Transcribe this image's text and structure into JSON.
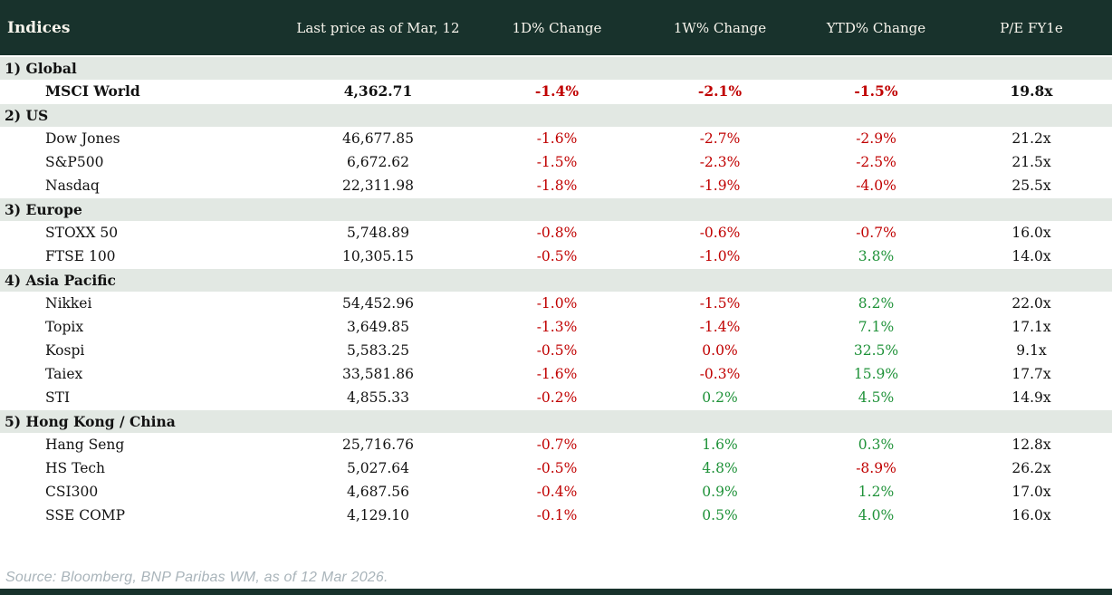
{
  "colors": {
    "header_bg": "#18322c",
    "header_text": "#f7f4ec",
    "section_bg": "#e2e8e3",
    "body_text": "#121212",
    "negative": "#c00000",
    "positive": "#1f9239",
    "source_text": "#a9b4ba",
    "bottom_bar": "#18322c"
  },
  "footer": {
    "source": "Source: Bloomberg, BNP Paribas WM, as of 12 Mar 2026."
  },
  "chart_data": {
    "type": "table",
    "title": "Indices",
    "columns": [
      "Indices",
      "Last price as of Mar, 12",
      "1D% Change",
      "1W% Change",
      "YTD% Change",
      "P/E FY1e"
    ],
    "sections": [
      {
        "label": "1) Global",
        "rows": [
          {
            "name": "MSCI World",
            "price": "4,362.71",
            "d1": {
              "text": "-1.4%",
              "dir": "neg"
            },
            "w1": {
              "text": "-2.1%",
              "dir": "neg"
            },
            "ytd": {
              "text": "-1.5%",
              "dir": "neg"
            },
            "pe": "19.8x",
            "bold": true
          }
        ]
      },
      {
        "label": "2) US",
        "rows": [
          {
            "name": "Dow Jones",
            "price": "46,677.85",
            "d1": {
              "text": "-1.6%",
              "dir": "neg"
            },
            "w1": {
              "text": "-2.7%",
              "dir": "neg"
            },
            "ytd": {
              "text": "-2.9%",
              "dir": "neg"
            },
            "pe": "21.2x",
            "bold": false
          },
          {
            "name": "S&P500",
            "price": "6,672.62",
            "d1": {
              "text": "-1.5%",
              "dir": "neg"
            },
            "w1": {
              "text": "-2.3%",
              "dir": "neg"
            },
            "ytd": {
              "text": "-2.5%",
              "dir": "neg"
            },
            "pe": "21.5x",
            "bold": false
          },
          {
            "name": "Nasdaq",
            "price": "22,311.98",
            "d1": {
              "text": "-1.8%",
              "dir": "neg"
            },
            "w1": {
              "text": "-1.9%",
              "dir": "neg"
            },
            "ytd": {
              "text": "-4.0%",
              "dir": "neg"
            },
            "pe": "25.5x",
            "bold": false
          }
        ]
      },
      {
        "label": "3) Europe",
        "rows": [
          {
            "name": "STOXX 50",
            "price": "5,748.89",
            "d1": {
              "text": "-0.8%",
              "dir": "neg"
            },
            "w1": {
              "text": "-0.6%",
              "dir": "neg"
            },
            "ytd": {
              "text": "-0.7%",
              "dir": "neg"
            },
            "pe": "16.0x",
            "bold": false
          },
          {
            "name": "FTSE 100",
            "price": "10,305.15",
            "d1": {
              "text": "-0.5%",
              "dir": "neg"
            },
            "w1": {
              "text": "-1.0%",
              "dir": "neg"
            },
            "ytd": {
              "text": "3.8%",
              "dir": "pos"
            },
            "pe": "14.0x",
            "bold": false
          }
        ]
      },
      {
        "label": "4) Asia Pacific",
        "rows": [
          {
            "name": "Nikkei",
            "price": "54,452.96",
            "d1": {
              "text": "-1.0%",
              "dir": "neg"
            },
            "w1": {
              "text": "-1.5%",
              "dir": "neg"
            },
            "ytd": {
              "text": "8.2%",
              "dir": "pos"
            },
            "pe": "22.0x",
            "bold": false
          },
          {
            "name": "Topix",
            "price": "3,649.85",
            "d1": {
              "text": "-1.3%",
              "dir": "neg"
            },
            "w1": {
              "text": "-1.4%",
              "dir": "neg"
            },
            "ytd": {
              "text": "7.1%",
              "dir": "pos"
            },
            "pe": "17.1x",
            "bold": false
          },
          {
            "name": "Kospi",
            "price": "5,583.25",
            "d1": {
              "text": "-0.5%",
              "dir": "neg"
            },
            "w1": {
              "text": "0.0%",
              "dir": "neg"
            },
            "ytd": {
              "text": "32.5%",
              "dir": "pos"
            },
            "pe": "9.1x",
            "bold": false
          },
          {
            "name": "Taiex",
            "price": "33,581.86",
            "d1": {
              "text": "-1.6%",
              "dir": "neg"
            },
            "w1": {
              "text": "-0.3%",
              "dir": "neg"
            },
            "ytd": {
              "text": "15.9%",
              "dir": "pos"
            },
            "pe": "17.7x",
            "bold": false
          },
          {
            "name": "STI",
            "price": "4,855.33",
            "d1": {
              "text": "-0.2%",
              "dir": "neg"
            },
            "w1": {
              "text": "0.2%",
              "dir": "pos"
            },
            "ytd": {
              "text": "4.5%",
              "dir": "pos"
            },
            "pe": "14.9x",
            "bold": false
          }
        ]
      },
      {
        "label": "5) Hong Kong / China",
        "rows": [
          {
            "name": "Hang Seng",
            "price": "25,716.76",
            "d1": {
              "text": "-0.7%",
              "dir": "neg"
            },
            "w1": {
              "text": "1.6%",
              "dir": "pos"
            },
            "ytd": {
              "text": "0.3%",
              "dir": "pos"
            },
            "pe": "12.8x",
            "bold": false
          },
          {
            "name": "HS Tech",
            "price": "5,027.64",
            "d1": {
              "text": "-0.5%",
              "dir": "neg"
            },
            "w1": {
              "text": "4.8%",
              "dir": "pos"
            },
            "ytd": {
              "text": "-8.9%",
              "dir": "neg"
            },
            "pe": "26.2x",
            "bold": false
          },
          {
            "name": "CSI300",
            "price": "4,687.56",
            "d1": {
              "text": "-0.4%",
              "dir": "neg"
            },
            "w1": {
              "text": "0.9%",
              "dir": "pos"
            },
            "ytd": {
              "text": "1.2%",
              "dir": "pos"
            },
            "pe": "17.0x",
            "bold": false
          },
          {
            "name": "SSE COMP",
            "price": "4,129.10",
            "d1": {
              "text": "-0.1%",
              "dir": "neg"
            },
            "w1": {
              "text": "0.5%",
              "dir": "pos"
            },
            "ytd": {
              "text": "4.0%",
              "dir": "pos"
            },
            "pe": "16.0x",
            "bold": false
          }
        ]
      }
    ]
  }
}
